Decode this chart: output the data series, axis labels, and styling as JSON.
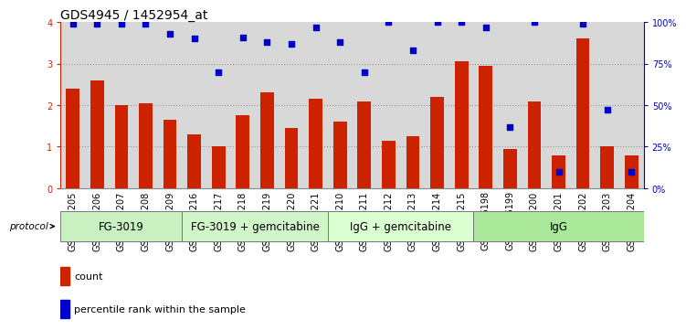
{
  "title": "GDS4945 / 1452954_at",
  "samples": [
    "GSM1126205",
    "GSM1126206",
    "GSM1126207",
    "GSM1126208",
    "GSM1126209",
    "GSM1126216",
    "GSM1126217",
    "GSM1126218",
    "GSM1126219",
    "GSM1126220",
    "GSM1126221",
    "GSM1126210",
    "GSM1126211",
    "GSM1126212",
    "GSM1126213",
    "GSM1126214",
    "GSM1126215",
    "GSM1126198",
    "GSM1126199",
    "GSM1126200",
    "GSM1126201",
    "GSM1126202",
    "GSM1126203",
    "GSM1126204"
  ],
  "counts": [
    2.4,
    2.6,
    2.0,
    2.05,
    1.65,
    1.3,
    1.0,
    1.75,
    2.3,
    1.45,
    2.15,
    1.6,
    2.1,
    1.15,
    1.25,
    2.2,
    3.05,
    2.95,
    0.95,
    2.1,
    0.8,
    3.6,
    1.0,
    0.8
  ],
  "percentile": [
    99,
    99,
    99,
    99,
    93,
    90,
    70,
    91,
    88,
    87,
    97,
    88,
    70,
    100,
    83,
    100,
    100,
    97,
    37,
    100,
    10,
    99,
    47,
    10
  ],
  "groups": [
    {
      "label": "FG-3019",
      "start": 0,
      "end": 5,
      "color": "#c8f0c0"
    },
    {
      "label": "FG-3019 + gemcitabine",
      "start": 5,
      "end": 11,
      "color": "#d0f5c8"
    },
    {
      "label": "IgG + gemcitabine",
      "start": 11,
      "end": 17,
      "color": "#daffd0"
    },
    {
      "label": "IgG",
      "start": 17,
      "end": 24,
      "color": "#a8e898"
    }
  ],
  "bar_color": "#cc2200",
  "dot_color": "#0000cc",
  "ylim_left": [
    0,
    4
  ],
  "ylim_right": [
    0,
    100
  ],
  "yticks_left": [
    0,
    1,
    2,
    3,
    4
  ],
  "yticks_right": [
    0,
    25,
    50,
    75,
    100
  ],
  "yticklabels_right": [
    "0%",
    "25%",
    "50%",
    "75%",
    "100%"
  ],
  "grid_color": "#999999",
  "bg_color": "#d8d8d8",
  "title_fontsize": 10,
  "tick_fontsize": 7,
  "group_fontsize": 8.5
}
